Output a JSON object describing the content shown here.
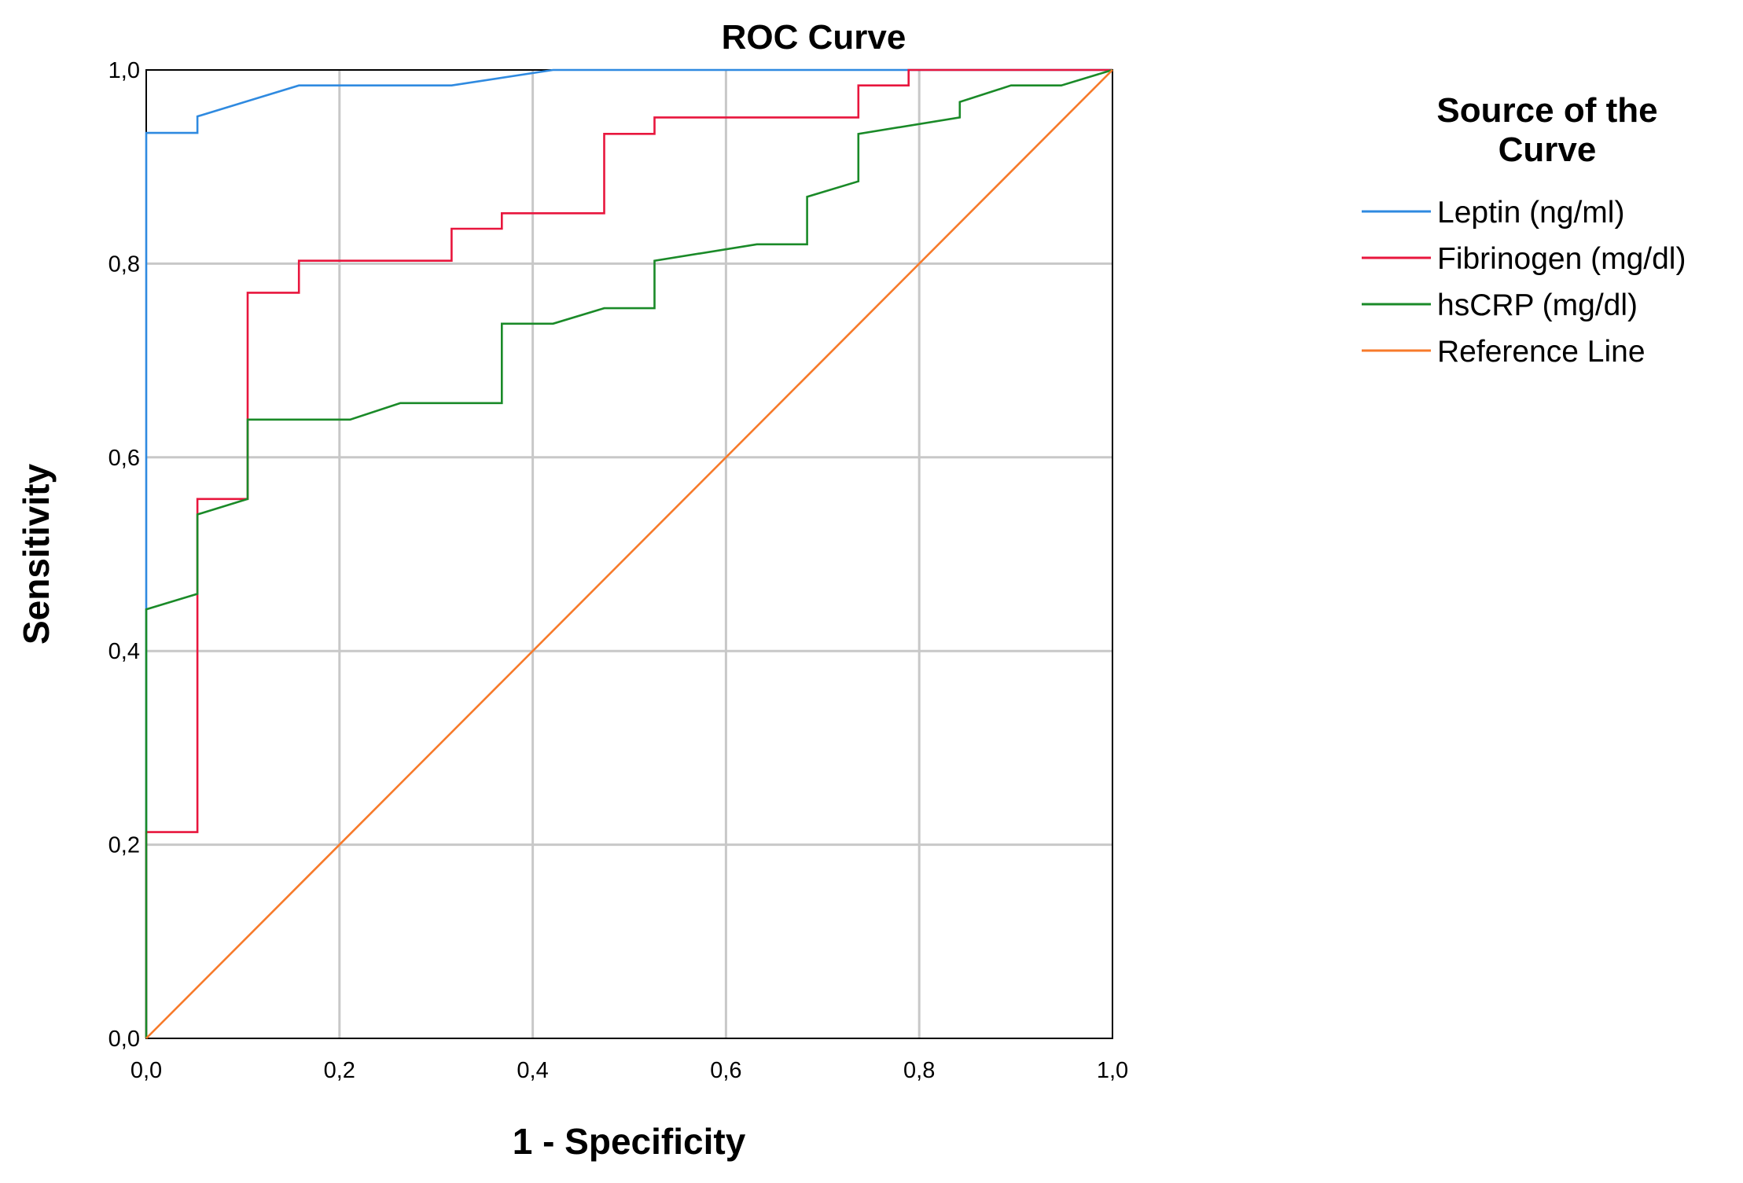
{
  "chart_data": {
    "type": "line",
    "title": "ROC Curve",
    "xlabel": "1 - Specificity",
    "ylabel": "Sensitivity",
    "xlim": [
      0,
      1
    ],
    "ylim": [
      0,
      1
    ],
    "x_ticks": [
      "0,0",
      "0,2",
      "0,4",
      "0,6",
      "0,8",
      "1,0"
    ],
    "y_ticks": [
      "0,0",
      "0,2",
      "0,4",
      "0,6",
      "0,8",
      "1,0"
    ],
    "grid": true,
    "legend_title_lines": [
      "Source of the",
      "Curve"
    ],
    "legend_placement": "right",
    "series": [
      {
        "name": "Leptin (ng/ml)",
        "color": "#2f8ae0",
        "points": [
          [
            0,
            0
          ],
          [
            0,
            0.935
          ],
          [
            0.053,
            0.935
          ],
          [
            0.053,
            0.952
          ],
          [
            0.158,
            0.984
          ],
          [
            0.316,
            0.984
          ],
          [
            0.421,
            1.0
          ],
          [
            1.0,
            1.0
          ]
        ]
      },
      {
        "name": "Fibrinogen (mg/dl)",
        "color": "#e8163d",
        "points": [
          [
            0,
            0
          ],
          [
            0,
            0.213
          ],
          [
            0.053,
            0.213
          ],
          [
            0.053,
            0.557
          ],
          [
            0.105,
            0.557
          ],
          [
            0.105,
            0.77
          ],
          [
            0.158,
            0.77
          ],
          [
            0.158,
            0.803
          ],
          [
            0.316,
            0.803
          ],
          [
            0.316,
            0.836
          ],
          [
            0.368,
            0.836
          ],
          [
            0.368,
            0.852
          ],
          [
            0.474,
            0.852
          ],
          [
            0.474,
            0.934
          ],
          [
            0.526,
            0.934
          ],
          [
            0.526,
            0.951
          ],
          [
            0.737,
            0.951
          ],
          [
            0.737,
            0.984
          ],
          [
            0.789,
            0.984
          ],
          [
            0.789,
            1.0
          ],
          [
            1.0,
            1.0
          ]
        ]
      },
      {
        "name": "hsCRP (mg/dl)",
        "color": "#1a8a28",
        "points": [
          [
            0,
            0
          ],
          [
            0,
            0.443
          ],
          [
            0.053,
            0.459
          ],
          [
            0.053,
            0.541
          ],
          [
            0.105,
            0.557
          ],
          [
            0.105,
            0.639
          ],
          [
            0.211,
            0.639
          ],
          [
            0.263,
            0.656
          ],
          [
            0.368,
            0.656
          ],
          [
            0.368,
            0.738
          ],
          [
            0.421,
            0.738
          ],
          [
            0.474,
            0.754
          ],
          [
            0.526,
            0.754
          ],
          [
            0.526,
            0.803
          ],
          [
            0.632,
            0.82
          ],
          [
            0.684,
            0.82
          ],
          [
            0.684,
            0.869
          ],
          [
            0.737,
            0.885
          ],
          [
            0.737,
            0.934
          ],
          [
            0.842,
            0.951
          ],
          [
            0.842,
            0.967
          ],
          [
            0.895,
            0.984
          ],
          [
            0.947,
            0.984
          ],
          [
            1.0,
            1.0
          ]
        ]
      },
      {
        "name": "Reference Line",
        "color": "#f77a2a",
        "points": [
          [
            0,
            0
          ],
          [
            1,
            1
          ]
        ]
      }
    ]
  }
}
